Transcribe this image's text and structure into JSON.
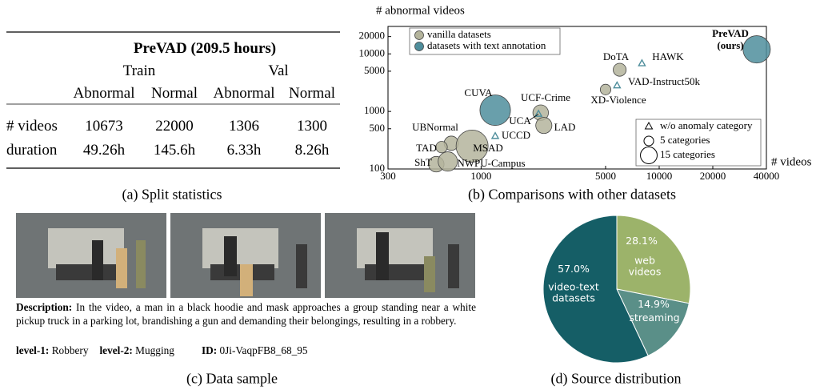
{
  "table": {
    "title": "PreVAD (209.5 hours)",
    "groups": [
      "Train",
      "Val"
    ],
    "columns": [
      "Abnormal",
      "Normal",
      "Abnormal",
      "Normal"
    ],
    "rows": [
      [
        "# videos",
        "10673",
        "22000",
        "1306",
        "1300"
      ],
      [
        "duration",
        "49.26h",
        "145.6h",
        "6.33h",
        "8.26h"
      ]
    ]
  },
  "sample": {
    "description_label": "Description:",
    "description": "In the video, a man in a black hoodie and mask approaches a group standing near a white pickup truck in a parking lot, brandishing a gun and demanding their belongings, resulting in a robbery.",
    "fields": [
      {
        "label": "level-1:",
        "value": "Robbery"
      },
      {
        "label": "level-2:",
        "value": "Mugging"
      },
      {
        "label": "ID:",
        "value": "0Ji-VaqpFB8_68_95"
      }
    ]
  },
  "captions": [
    "(a) Split statistics",
    "(b) Comparisons with other datasets",
    "(c) Data sample",
    "(d) Source distribution"
  ],
  "chart_data": [
    {
      "type": "scatter",
      "x_label": "# videos",
      "y_label": "# abnormal videos",
      "xscale": "log",
      "yscale": "log",
      "xlim": [
        300,
        40000
      ],
      "ylim": [
        100,
        30000
      ],
      "xticks": [
        300,
        1000,
        5000,
        10000,
        20000,
        40000
      ],
      "yticks": [
        100,
        500,
        1000,
        5000,
        10000,
        20000
      ],
      "series": [
        {
          "name": "vanilla datasets",
          "marker": "circle",
          "color": "#b4b49c",
          "labels": [
            "DoTA",
            "XD-Violence",
            "UCF-Crime",
            "LAD",
            "UBNormal",
            "TAD",
            "MSAD",
            "ShT",
            "NWPU-Campus"
          ],
          "x": [
            6000,
            5000,
            2160,
            2250,
            680,
            600,
            890,
            560,
            650
          ],
          "values": [
            5300,
            2400,
            950,
            570,
            280,
            240,
            250,
            121,
            135
          ],
          "sizes": [
            9,
            6,
            13,
            14,
            11,
            7,
            55,
            13,
            20
          ]
        },
        {
          "name": "datasets with text annotation",
          "marker": "circle",
          "color": "#4f8e9c",
          "labels": [
            "PreVAD (ours)",
            "CUVA"
          ],
          "x": [
            35279,
            1200
          ],
          "values": [
            11979,
            1050
          ],
          "sizes": [
            40,
            50
          ]
        },
        {
          "name": "w/o anomaly category",
          "marker": "triangle",
          "color": "#4f8e9c",
          "labels": [
            "HAWK",
            "VAD-Instruct50k",
            "UCA",
            "UCCD"
          ],
          "x": [
            8000,
            5800,
            2100,
            1200
          ],
          "values": [
            6800,
            2800,
            900,
            370
          ]
        }
      ],
      "size_legend": [
        {
          "value": 5,
          "label": "5 categories"
        },
        {
          "value": 15,
          "label": "15 categories"
        }
      ]
    },
    {
      "type": "pie",
      "categories": [
        "web videos",
        "streaming",
        "video-text datasets"
      ],
      "values": [
        28.1,
        14.9,
        57.0
      ],
      "value_labels": [
        "28.1%",
        "14.9%",
        "57.0%"
      ],
      "colors": [
        "#9cb36a",
        "#5a8f88",
        "#155e66"
      ]
    }
  ]
}
